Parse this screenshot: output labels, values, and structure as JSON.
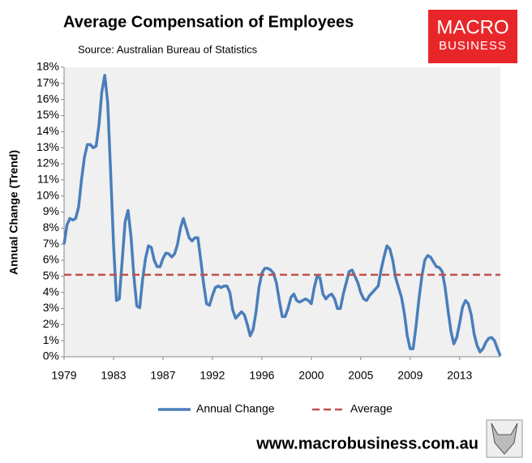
{
  "chart_data": {
    "type": "line",
    "title": "Average Compensation of Employees",
    "subtitle": "Source: Australian Bureau of Statistics",
    "y_label": "Annual Change (Trend)",
    "logo": [
      "MACRO",
      "BUSINESS"
    ],
    "footer": "www.macrobusiness.com.au",
    "categories": [
      "1979",
      null,
      null,
      null,
      null,
      null,
      null,
      null,
      null,
      null,
      null,
      null,
      null,
      null,
      null,
      null,
      null,
      "1983",
      null,
      null,
      null,
      null,
      null,
      null,
      null,
      null,
      null,
      null,
      null,
      null,
      null,
      null,
      null,
      null,
      "1987",
      null,
      null,
      null,
      null,
      null,
      null,
      null,
      null,
      null,
      null,
      null,
      null,
      null,
      null,
      null,
      null,
      "1992",
      null,
      null,
      null,
      null,
      null,
      null,
      null,
      null,
      null,
      null,
      null,
      null,
      null,
      null,
      null,
      null,
      "1996",
      null,
      null,
      null,
      null,
      null,
      null,
      null,
      null,
      null,
      null,
      null,
      null,
      null,
      null,
      null,
      null,
      "2000",
      null,
      null,
      null,
      null,
      null,
      null,
      null,
      null,
      null,
      null,
      null,
      null,
      null,
      null,
      null,
      null,
      "2005",
      null,
      null,
      null,
      null,
      null,
      null,
      null,
      null,
      null,
      null,
      null,
      null,
      null,
      null,
      null,
      null,
      "2009",
      null,
      null,
      null,
      null,
      null,
      null,
      null,
      null,
      null,
      null,
      null,
      null,
      null,
      null,
      null,
      null,
      "2013",
      null,
      null,
      null,
      null,
      null,
      null,
      null,
      null,
      null,
      null,
      null,
      null,
      null,
      null
    ],
    "series": [
      {
        "name": "Annual Change",
        "color": "#4a7ebb",
        "values": [
          7.0,
          8.2,
          8.6,
          8.5,
          8.6,
          9.3,
          11.0,
          12.4,
          13.2,
          13.2,
          13.0,
          13.1,
          14.4,
          16.5,
          17.5,
          15.8,
          11.5,
          7.0,
          3.5,
          3.6,
          6.0,
          8.4,
          9.1,
          7.5,
          5.0,
          3.15,
          3.05,
          4.8,
          6.1,
          6.9,
          6.8,
          6.0,
          5.6,
          5.6,
          6.1,
          6.45,
          6.4,
          6.2,
          6.4,
          7.0,
          8.0,
          8.6,
          8.0,
          7.4,
          7.2,
          7.4,
          7.4,
          6.0,
          4.5,
          3.3,
          3.2,
          3.8,
          4.3,
          4.4,
          4.3,
          4.4,
          4.4,
          4.0,
          2.9,
          2.4,
          2.6,
          2.8,
          2.6,
          2.0,
          1.3,
          1.7,
          2.8,
          4.3,
          5.2,
          5.5,
          5.5,
          5.4,
          5.2,
          4.6,
          3.5,
          2.5,
          2.5,
          3.0,
          3.7,
          3.9,
          3.5,
          3.4,
          3.5,
          3.6,
          3.5,
          3.3,
          4.3,
          5.0,
          4.9,
          3.9,
          3.6,
          3.8,
          3.9,
          3.6,
          3.0,
          3.0,
          3.9,
          4.6,
          5.3,
          5.4,
          5.0,
          4.6,
          4.0,
          3.6,
          3.5,
          3.8,
          4.0,
          4.2,
          4.4,
          5.4,
          6.2,
          6.9,
          6.7,
          6.0,
          4.9,
          4.3,
          3.7,
          2.7,
          1.3,
          0.5,
          0.5,
          1.9,
          3.6,
          5.0,
          6.0,
          6.3,
          6.2,
          5.9,
          5.6,
          5.55,
          5.3,
          4.3,
          2.9,
          1.6,
          0.8,
          1.2,
          2.1,
          3.1,
          3.5,
          3.3,
          2.6,
          1.4,
          0.7,
          0.3,
          0.5,
          0.9,
          1.15,
          1.2,
          1.0,
          0.5,
          0.05
        ]
      },
      {
        "name": "Average",
        "color": "#c0504d",
        "dashed": true,
        "value": 5.1
      }
    ],
    "ylim": [
      0,
      18
    ],
    "yticks": [
      {
        "value": 0,
        "label": "0%"
      },
      {
        "value": 1,
        "label": "1%"
      },
      {
        "value": 2,
        "label": "2%"
      },
      {
        "value": 3,
        "label": "3%"
      },
      {
        "value": 4,
        "label": "4%"
      },
      {
        "value": 5,
        "label": "5%"
      },
      {
        "value": 6,
        "label": "6%"
      },
      {
        "value": 7,
        "label": "7%"
      },
      {
        "value": 8,
        "label": "8%"
      },
      {
        "value": 9,
        "label": "9%"
      },
      {
        "value": 10,
        "label": "10%"
      },
      {
        "value": 11,
        "label": "11%"
      },
      {
        "value": 12,
        "label": "12%"
      },
      {
        "value": 13,
        "label": "13%"
      },
      {
        "value": 14,
        "label": "14%"
      },
      {
        "value": 15,
        "label": "15%"
      },
      {
        "value": 16,
        "label": "16%"
      },
      {
        "value": 17,
        "label": "17%"
      },
      {
        "value": 18,
        "label": "18%"
      }
    ],
    "grid": false,
    "legend": "bottom"
  }
}
